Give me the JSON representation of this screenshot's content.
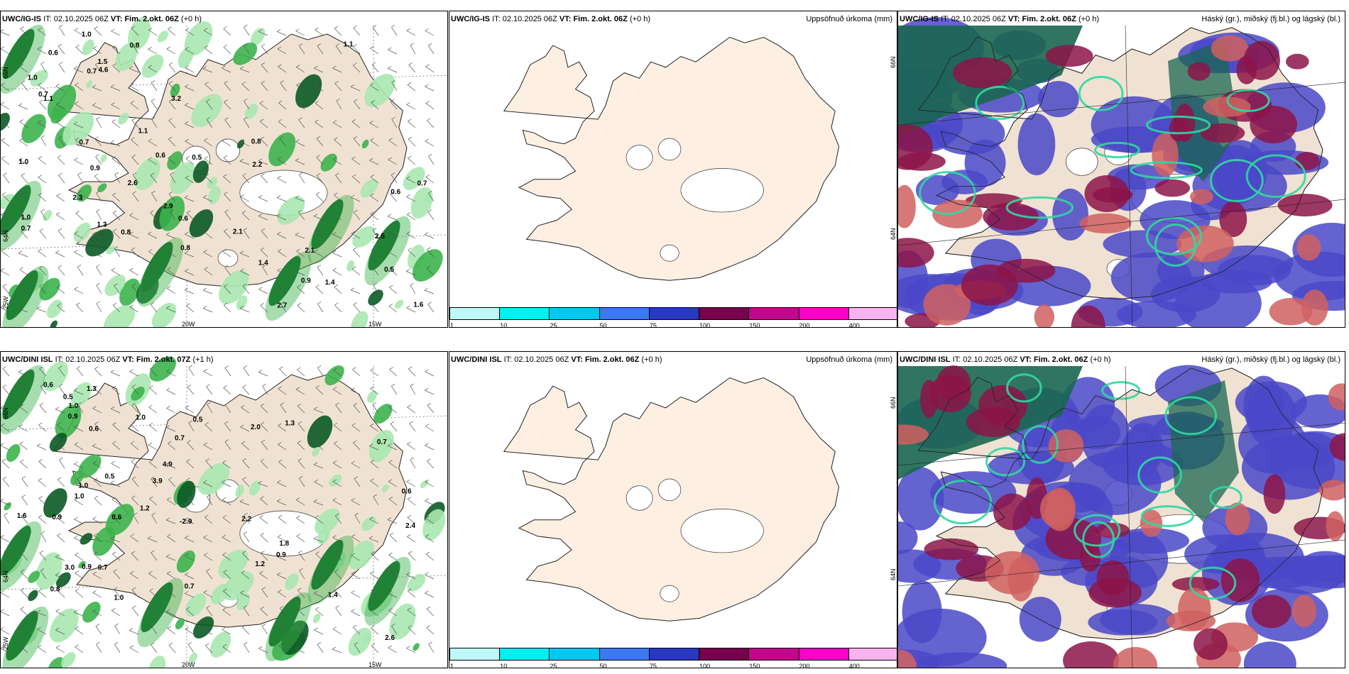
{
  "panels": [
    {
      "id": "p1",
      "model": "UWC/IG-IS",
      "it_label": "IT:",
      "it_value": "02.10.2025 06Z",
      "vt_label": "VT:",
      "vt_value": "Fim. 2.okt. 06Z",
      "lead": "(+0 h)",
      "product": "",
      "values": [
        "2.6",
        "3.2",
        "4.6",
        "1.0",
        "1.1",
        "0.7",
        "1.3",
        "0.8",
        "0.7",
        "0.6",
        "0.9",
        "1.5",
        "0.8",
        "1.0",
        "0.6",
        "0.5",
        "1.0",
        "0.8",
        "1.1",
        "0.6",
        "1.0",
        "0.7",
        "2.9",
        "2.3",
        "0.7",
        "0.8",
        "0.6",
        "2.1",
        "2.7",
        "1.4",
        "2.1",
        "1.4",
        "0.5",
        "2.5",
        "2.2",
        "1.6",
        "0.9",
        "1.1",
        "0.7"
      ],
      "lon_labels": [
        "20W",
        "15W"
      ],
      "lat_labels": [
        "66N",
        "64N",
        "25W"
      ]
    },
    {
      "id": "p2",
      "model": "UWC/IG-IS",
      "it_label": "IT:",
      "it_value": "02.10.2025 06Z",
      "vt_label": "VT:",
      "vt_value": "Fim. 2.okt. 06Z",
      "lead": "(+0 h)",
      "product": "Uppsöfnuð úrkoma (mm)",
      "lat_labels": [
        "66N",
        "64N"
      ]
    },
    {
      "id": "p3",
      "model": "UWC/IG-IS",
      "it_label": "IT:",
      "it_value": "02.10.2025 06Z",
      "vt_label": "VT:",
      "vt_value": "Fim. 2.okt. 06Z",
      "lead": "(+0 h)",
      "product": "Háský (gr.), miðský (fj.bl.) og lágský (bl.)"
    },
    {
      "id": "p4",
      "model": "UWC/DINI ISL",
      "it_label": "IT:",
      "it_value": "02.10.2025 06Z",
      "vt_label": "VT:",
      "vt_value": "Fim. 2.okt. 07Z",
      "lead": "(+1 h)",
      "product": "",
      "values": [
        "0.7",
        "3.0",
        "3.9",
        "4.9",
        "0.5",
        "0.9",
        "0.7",
        "1.0",
        "0.5",
        "0.9",
        "1.0",
        "1.2",
        "1.3",
        "1.0",
        "0.8",
        "1.0",
        "0.7",
        "0.9",
        "0.6",
        "1.0",
        "0.6",
        "-2.9",
        "0.5",
        "1.6",
        "0.6",
        "2.2",
        "2.0",
        "1.4",
        "1.2",
        "1.8",
        "1.3",
        "2.6",
        "0.7",
        "2.4",
        "0.9",
        "0.6"
      ],
      "lon_labels": [
        "20W",
        "15W"
      ],
      "lat_labels": [
        "66N",
        "64N",
        "25W"
      ]
    },
    {
      "id": "p5",
      "model": "UWC/DINI ISL",
      "it_label": "IT:",
      "it_value": "02.10.2025 06Z",
      "vt_label": "VT:",
      "vt_value": "Fim. 2.okt. 06Z",
      "lead": "(+0 h)",
      "product": "Uppsöfnuð úrkoma (mm)",
      "lat_labels": [
        "66N",
        "64N"
      ]
    },
    {
      "id": "p6",
      "model": "UWC/DINI ISL",
      "it_label": "IT:",
      "it_value": "02.10.2025 06Z",
      "vt_label": "VT:",
      "vt_value": "Fim. 2.okt. 06Z",
      "lead": "(+0 h)",
      "product": "Háský (gr.), miðský (fj.bl.) og lágský (bl.)"
    }
  ],
  "colorbar": {
    "ticks": [
      "1",
      "10",
      "25",
      "50",
      "75",
      "100",
      "150",
      "200",
      "400"
    ],
    "colors": [
      "#bff8f8",
      "#00f0f0",
      "#00c8f0",
      "#3c78f0",
      "#2838c0",
      "#78004c",
      "#c0088c",
      "#ff00c8",
      "#f8b4f0"
    ]
  },
  "colors": {
    "land": "#f0e2d2",
    "land_plain": "#fdf0e3",
    "green_light": "#a8e8b0",
    "green_mid": "#3cb44c",
    "green_dark": "#0a5a24",
    "cloud_high": "#1a6650",
    "cloud_mid": "#8c1448",
    "cloud_low": "#4a48c8",
    "cloud_mix": "#d06060",
    "cloud_cyan": "#30d8a0"
  }
}
